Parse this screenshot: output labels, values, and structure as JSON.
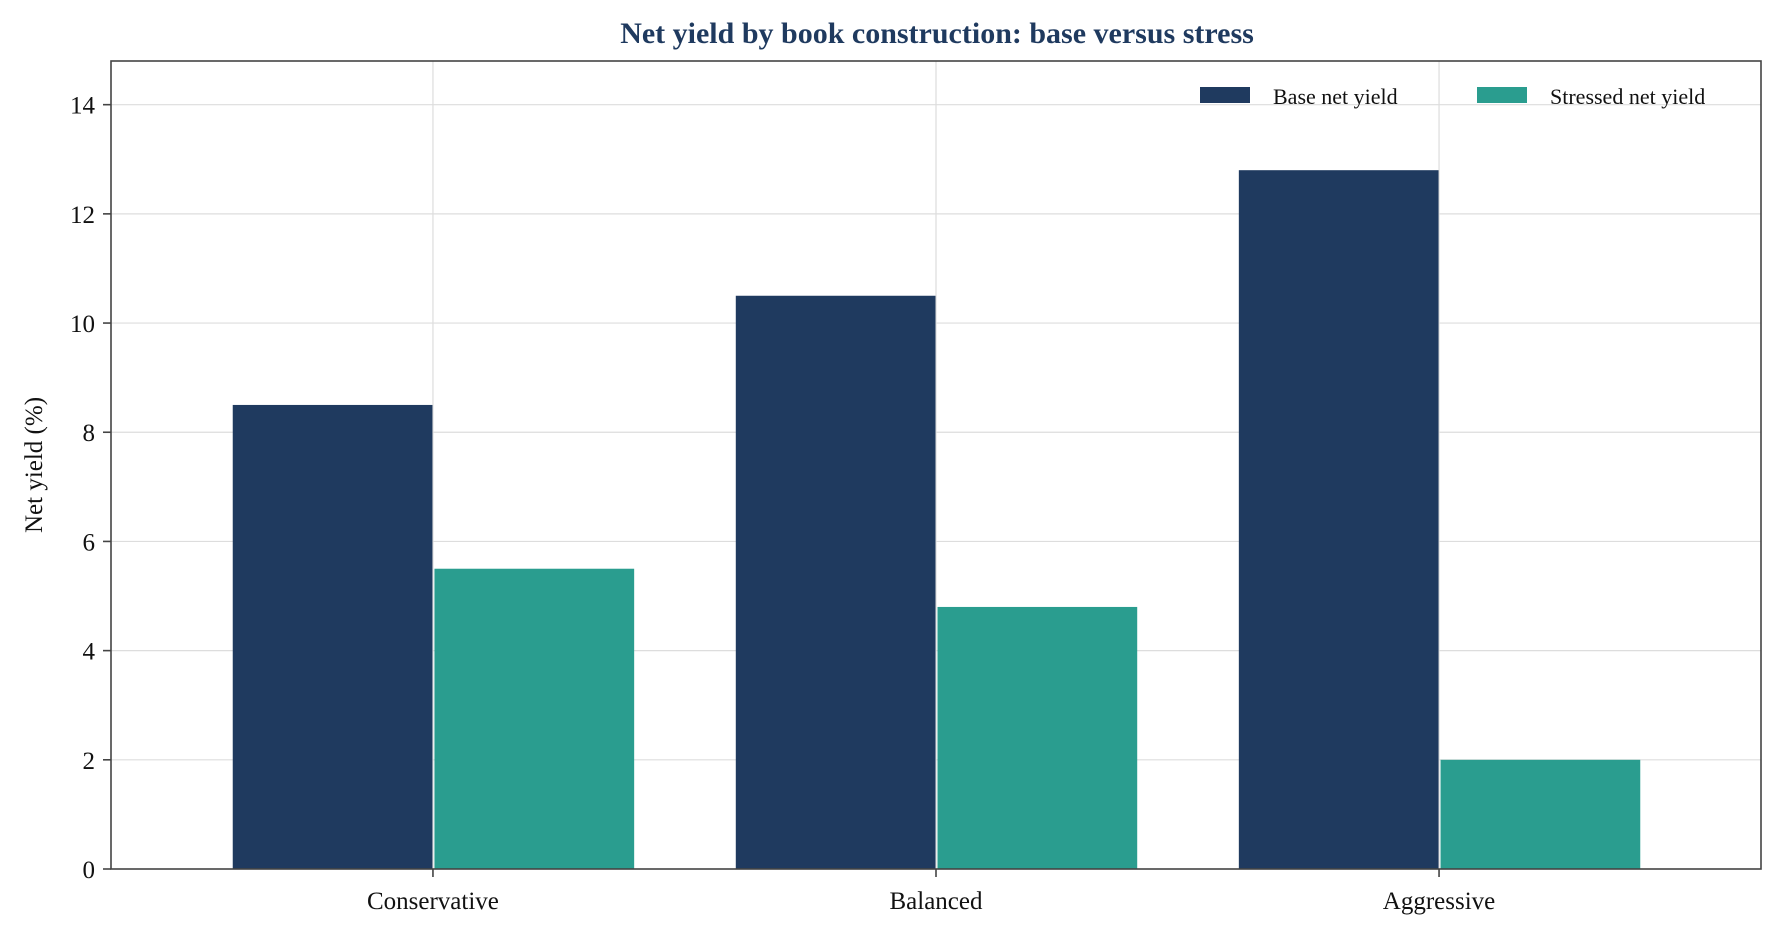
{
  "chart_data": {
    "type": "bar",
    "title": "Net yield by book construction: base versus stress",
    "xlabel": "",
    "ylabel": "Net yield (%)",
    "categories": [
      "Conservative",
      "Balanced",
      "Aggressive"
    ],
    "series": [
      {
        "name": "Base net yield",
        "values": [
          8.5,
          10.5,
          12.8
        ],
        "color": "#1f3a5f"
      },
      {
        "name": "Stressed net yield",
        "values": [
          5.5,
          4.8,
          2.0
        ],
        "color": "#2a9d8f"
      }
    ],
    "ylim": [
      0,
      14.8
    ],
    "yticks": [
      0,
      2,
      4,
      6,
      8,
      10,
      12,
      14
    ],
    "grid": true,
    "legend": "top-right",
    "colors": {
      "title": "#1f3a5f",
      "grid": "#dddddd",
      "axis": "#444444"
    }
  }
}
